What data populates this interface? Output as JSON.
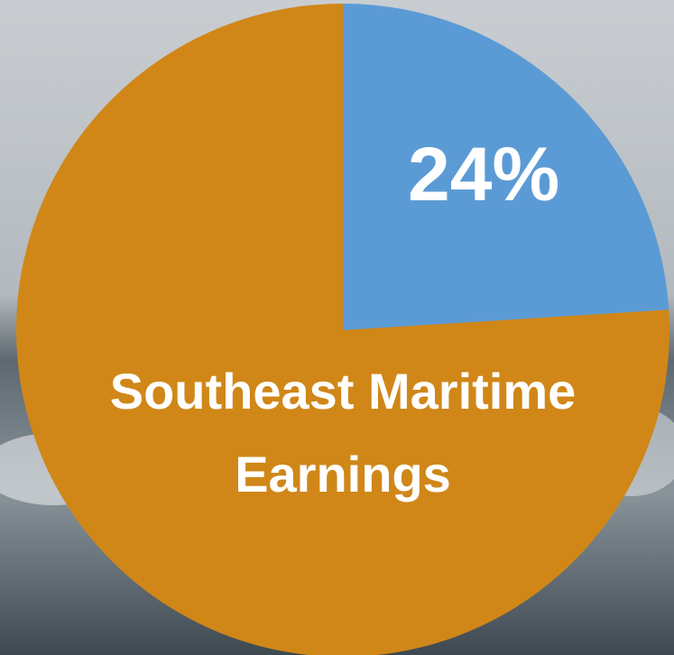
{
  "chart_data": {
    "type": "pie",
    "title": "Southeast Maritime Earnings",
    "values": [
      24,
      76
    ],
    "value_labels": [
      "24%",
      null
    ],
    "colors": [
      "#5b9bd5",
      "#d08718"
    ]
  }
}
